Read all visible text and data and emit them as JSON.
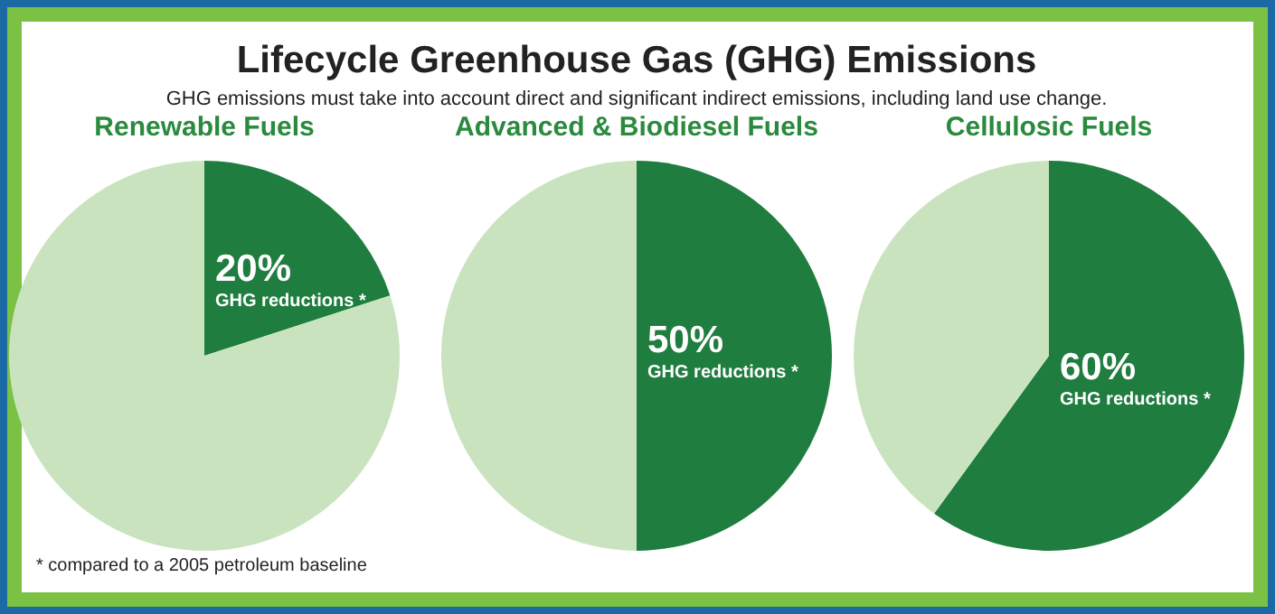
{
  "chart_data": [
    {
      "type": "other",
      "title": "Lifecycle Greenhouse Gas (GHG) Emissions",
      "subtitle": "GHG emissions must take into account direct and significant indirect emissions, including land use change.",
      "annotations": [
        "* compared to a 2005 petroleum baseline"
      ]
    },
    {
      "type": "pie",
      "title": "Renewable Fuels",
      "categories": [
        "GHG reductions *",
        null
      ],
      "values": [
        20,
        80
      ],
      "value_labels": [
        "20%",
        null
      ],
      "colors": [
        "#1f7d3f",
        "#cae3bf"
      ]
    },
    {
      "type": "pie",
      "title": "Advanced & Biodiesel Fuels",
      "categories": [
        "GHG reductions *",
        null
      ],
      "values": [
        50,
        50
      ],
      "value_labels": [
        "50%",
        null
      ],
      "colors": [
        "#1f7d3f",
        "#cae3bf"
      ]
    },
    {
      "type": "pie",
      "title": "Cellulosic Fuels",
      "categories": [
        "GHG reductions *",
        null
      ],
      "values": [
        60,
        40
      ],
      "value_labels": [
        "60%",
        null
      ],
      "colors": [
        "#1f7d3f",
        "#cae3bf"
      ]
    }
  ]
}
